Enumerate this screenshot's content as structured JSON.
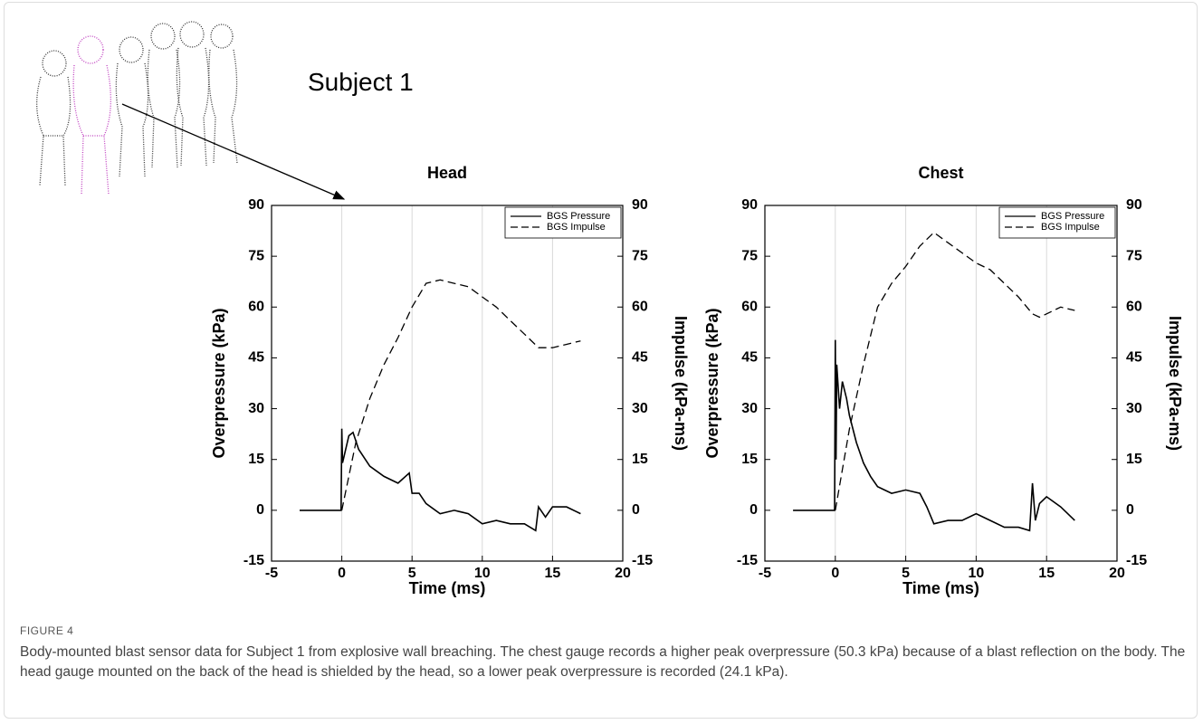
{
  "figure": {
    "label": "FIGURE 4",
    "subject": "Subject 1",
    "caption": "Body-mounted blast sensor data for Subject 1 from explosive wall breaching. The chest gauge records a higher peak overpressure (50.3 kPa) because of a blast reflection on the body. The head gauge mounted on the back of the head is shielded by the head, so a lower peak overpressure is recorded (24.1 kPa)."
  },
  "chart_data": [
    {
      "type": "line",
      "title": "Head",
      "x_label": "Time (ms)",
      "y_label": "Overpressure (kPa)",
      "y2_label": "Impulse (kPa-ms)",
      "xlim": [
        -5,
        20
      ],
      "xticks": [
        -5,
        0,
        5,
        10,
        15,
        20
      ],
      "ylim": [
        -15,
        90
      ],
      "yticks": [
        -15,
        0,
        15,
        30,
        45,
        60,
        75,
        90
      ],
      "y2lim": [
        -15,
        90
      ],
      "y2ticks": [
        -15,
        0,
        15,
        30,
        45,
        60,
        75,
        90
      ],
      "grid": "x",
      "legend": "upper right",
      "series": [
        {
          "name": "BGS Pressure",
          "color": "#000000",
          "line_style": "solid",
          "x": [
            -3,
            -1,
            -0.05,
            0,
            0.05,
            0.5,
            0.8,
            1.2,
            2,
            3,
            4,
            4.8,
            5,
            5.5,
            6,
            7,
            8,
            9,
            10,
            11,
            12,
            13,
            13.8,
            14,
            14.5,
            15,
            16,
            17
          ],
          "values": [
            0,
            0,
            0,
            24.1,
            14,
            22,
            23,
            18,
            13,
            10,
            8,
            11,
            5,
            5,
            2,
            -1,
            0,
            -1,
            -4,
            -3,
            -4,
            -4,
            -6,
            1,
            -2,
            1,
            1,
            -1
          ]
        },
        {
          "name": "BGS Impulse",
          "color": "#000000",
          "line_style": "dashed",
          "axis": "y2",
          "x": [
            0,
            1,
            2,
            3,
            4,
            5,
            6,
            7,
            8,
            9,
            10,
            11,
            12,
            13,
            14,
            15,
            16,
            17
          ],
          "values": [
            0,
            20,
            33,
            43,
            51,
            60,
            67,
            68,
            67,
            66,
            63,
            60,
            56,
            52,
            48,
            48,
            49,
            50
          ]
        }
      ]
    },
    {
      "type": "line",
      "title": "Chest",
      "x_label": "Time (ms)",
      "y_label": "Overpressure (kPa)",
      "y2_label": "Impulse (kPa-ms)",
      "xlim": [
        -5,
        20
      ],
      "xticks": [
        -5,
        0,
        5,
        10,
        15,
        20
      ],
      "ylim": [
        -15,
        90
      ],
      "yticks": [
        -15,
        0,
        15,
        30,
        45,
        60,
        75,
        90
      ],
      "y2lim": [
        -15,
        90
      ],
      "y2ticks": [
        -15,
        0,
        15,
        30,
        45,
        60,
        75,
        90
      ],
      "grid": "x",
      "legend": "upper right",
      "series": [
        {
          "name": "BGS Pressure",
          "color": "#000000",
          "line_style": "solid",
          "x": [
            -3,
            -1,
            -0.05,
            0,
            0.05,
            0.1,
            0.3,
            0.5,
            0.8,
            1,
            1.5,
            2,
            2.5,
            3,
            4,
            5,
            6,
            6.5,
            7,
            8,
            9,
            10,
            11,
            12,
            13,
            13.8,
            14,
            14.2,
            14.5,
            15,
            16,
            17
          ],
          "values": [
            0,
            0,
            0,
            50.3,
            15,
            43,
            30,
            38,
            33,
            28,
            20,
            14,
            10,
            7,
            5,
            6,
            5,
            1,
            -4,
            -3,
            -3,
            -1,
            -3,
            -5,
            -5,
            -6,
            8,
            -3,
            2,
            4,
            1,
            -3
          ]
        },
        {
          "name": "BGS Impulse",
          "color": "#000000",
          "line_style": "dashed",
          "axis": "y2",
          "x": [
            0,
            1,
            2,
            3,
            4,
            5,
            6,
            7,
            8,
            9,
            10,
            11,
            12,
            13,
            14,
            14.5,
            15,
            16,
            17
          ],
          "values": [
            0,
            24,
            43,
            60,
            67,
            72,
            78,
            82,
            79,
            76,
            73,
            71,
            67,
            63,
            58,
            57,
            58,
            60,
            59
          ]
        }
      ]
    }
  ]
}
